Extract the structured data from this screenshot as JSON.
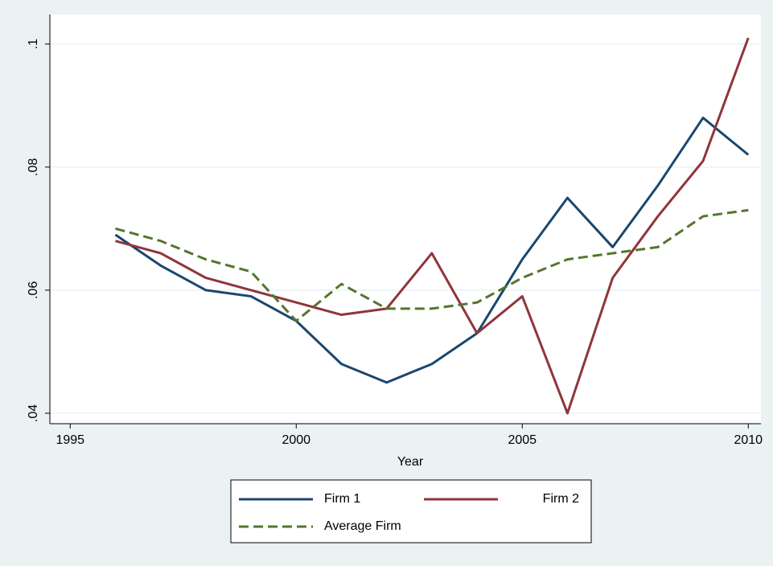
{
  "chart_data": {
    "type": "line",
    "x": [
      1996,
      1997,
      1998,
      1999,
      2000,
      2001,
      2002,
      2003,
      2004,
      2005,
      2006,
      2007,
      2008,
      2009,
      2010
    ],
    "series": [
      {
        "name": "Firm 1",
        "color": "#1a476f",
        "dash": false,
        "values": [
          0.069,
          0.064,
          0.06,
          0.059,
          0.055,
          0.048,
          0.045,
          0.048,
          0.053,
          0.065,
          0.075,
          0.067,
          0.077,
          0.088,
          0.082
        ]
      },
      {
        "name": "Firm 2",
        "color": "#90353b",
        "dash": false,
        "values": [
          0.068,
          0.066,
          0.062,
          0.06,
          0.058,
          0.056,
          0.057,
          0.066,
          0.053,
          0.059,
          0.04,
          0.062,
          0.072,
          0.081,
          0.101
        ]
      },
      {
        "name": "Average Firm",
        "color": "#55752f",
        "dash": true,
        "values": [
          0.07,
          0.068,
          0.065,
          0.063,
          0.055,
          0.061,
          0.057,
          0.057,
          0.058,
          0.062,
          0.065,
          0.066,
          0.067,
          0.072,
          0.073
        ]
      }
    ],
    "x_label": "Year",
    "xlim": [
      1994.55,
      2010.28
    ],
    "xticks": [
      1995,
      2000,
      2005,
      2010
    ],
    "ylim": [
      0.0383,
      0.1048
    ],
    "yticks": [
      {
        "value": 0.04,
        "label": ".04"
      },
      {
        "value": 0.06,
        "label": ".06"
      },
      {
        "value": 0.08,
        "label": ".08"
      },
      {
        "value": 0.1,
        "label": ".1"
      }
    ],
    "grid": true,
    "legend": "bottom"
  }
}
